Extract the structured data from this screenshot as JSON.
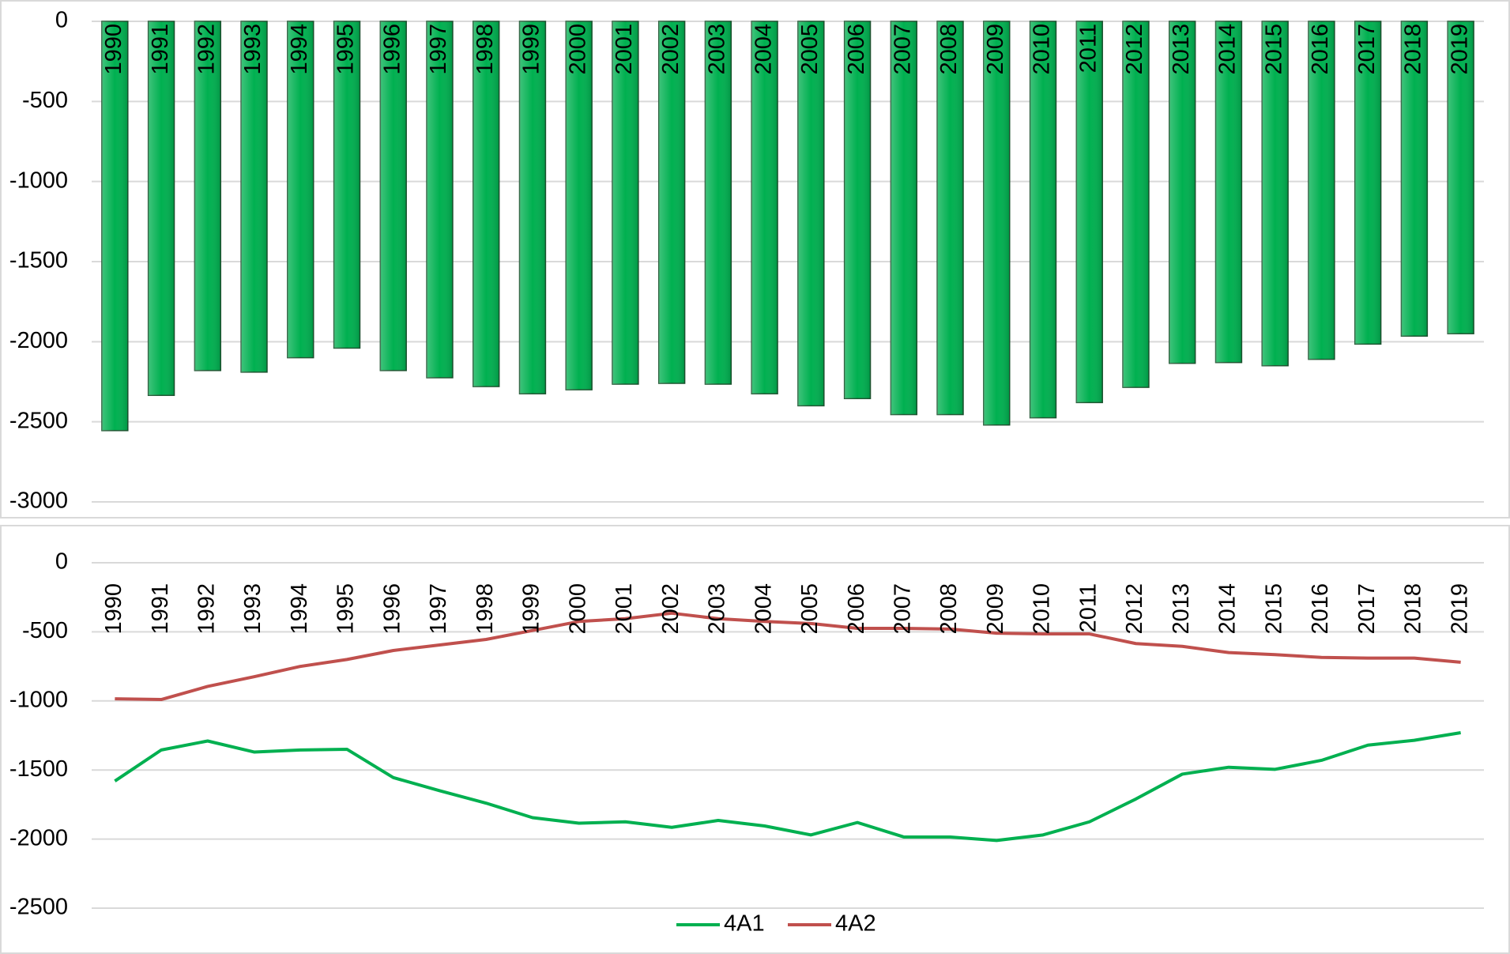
{
  "chart_data": [
    {
      "type": "bar",
      "categories": [
        "1990",
        "1991",
        "1992",
        "1993",
        "1994",
        "1995",
        "1996",
        "1997",
        "1998",
        "1999",
        "2000",
        "2001",
        "2002",
        "2003",
        "2004",
        "2005",
        "2006",
        "2007",
        "2008",
        "2009",
        "2010",
        "2011",
        "2012",
        "2013",
        "2014",
        "2015",
        "2016",
        "2017",
        "2018",
        "2019"
      ],
      "values": [
        -2555,
        -2335,
        -2180,
        -2190,
        -2100,
        -2040,
        -2180,
        -2225,
        -2280,
        -2325,
        -2300,
        -2265,
        -2260,
        -2265,
        -2325,
        -2400,
        -2355,
        -2455,
        -2455,
        -2520,
        -2475,
        -2380,
        -2285,
        -2135,
        -2130,
        -2150,
        -2110,
        -2015,
        -1965,
        -1950
      ],
      "color": "#00b050",
      "ylim": [
        -3000,
        0
      ],
      "yticks": [
        0,
        -500,
        -1000,
        -1500,
        -2000,
        -2500,
        -3000
      ],
      "grid": true
    },
    {
      "type": "line",
      "categories": [
        "1990",
        "1991",
        "1992",
        "1993",
        "1994",
        "1995",
        "1996",
        "1997",
        "1998",
        "1999",
        "2000",
        "2001",
        "2002",
        "2003",
        "2004",
        "2005",
        "2006",
        "2007",
        "2008",
        "2009",
        "2010",
        "2011",
        "2012",
        "2013",
        "2014",
        "2015",
        "2016",
        "2017",
        "2018",
        "2019"
      ],
      "series": [
        {
          "name": "4A1",
          "color": "#00b050",
          "values": [
            -1580,
            -1355,
            -1290,
            -1370,
            -1355,
            -1350,
            -1555,
            -1650,
            -1740,
            -1845,
            -1885,
            -1875,
            -1915,
            -1865,
            -1905,
            -1970,
            -1880,
            -1985,
            -1985,
            -2010,
            -1970,
            -1875,
            -1710,
            -1530,
            -1480,
            -1495,
            -1430,
            -1320,
            -1285,
            -1230
          ]
        },
        {
          "name": "4A2",
          "color": "#c0504d",
          "values": [
            -985,
            -990,
            -895,
            -825,
            -750,
            -700,
            -635,
            -595,
            -555,
            -490,
            -425,
            -405,
            -365,
            -405,
            -425,
            -440,
            -475,
            -475,
            -480,
            -510,
            -515,
            -515,
            -585,
            -605,
            -650,
            -665,
            -685,
            -690,
            -690,
            -720
          ]
        }
      ],
      "ylim": [
        -2500,
        0
      ],
      "yticks": [
        0,
        -500,
        -1000,
        -1500,
        -2000,
        -2500
      ],
      "grid": true,
      "legend": "bottom"
    }
  ]
}
